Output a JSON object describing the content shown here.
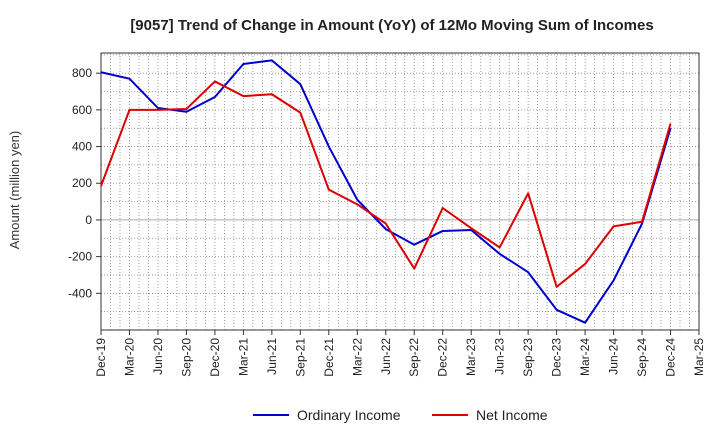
{
  "chart_data": {
    "type": "line",
    "title": "[9057]  Trend of Change in Amount (YoY) of 12Mo Moving Sum of Incomes",
    "xlabel": "",
    "ylabel": "Amount (million yen)",
    "ylim": [
      -600,
      910
    ],
    "yticks": [
      -400,
      -200,
      0,
      200,
      400,
      600,
      800
    ],
    "grid": true,
    "legend_position": "bottom-center",
    "categories": [
      "Dec-19",
      "Mar-20",
      "Jun-20",
      "Sep-20",
      "Dec-20",
      "Mar-21",
      "Jun-21",
      "Sep-21",
      "Dec-21",
      "Mar-22",
      "Jun-22",
      "Sep-22",
      "Dec-22",
      "Mar-23",
      "Jun-23",
      "Sep-23",
      "Dec-23",
      "Mar-24",
      "Jun-24",
      "Sep-24",
      "Dec-24",
      "Mar-25"
    ],
    "series": [
      {
        "name": "Ordinary Income",
        "color": "#0000cc",
        "values": [
          805,
          770,
          610,
          590,
          670,
          850,
          870,
          740,
          400,
          110,
          -50,
          -135,
          -60,
          -55,
          -185,
          -285,
          -490,
          -560,
          -330,
          -20,
          500,
          null
        ]
      },
      {
        "name": "Net Income",
        "color": "#dd0000",
        "values": [
          185,
          600,
          600,
          605,
          755,
          675,
          685,
          585,
          165,
          85,
          -20,
          -265,
          65,
          -45,
          -150,
          145,
          -365,
          -240,
          -35,
          -10,
          525,
          null
        ]
      }
    ]
  }
}
